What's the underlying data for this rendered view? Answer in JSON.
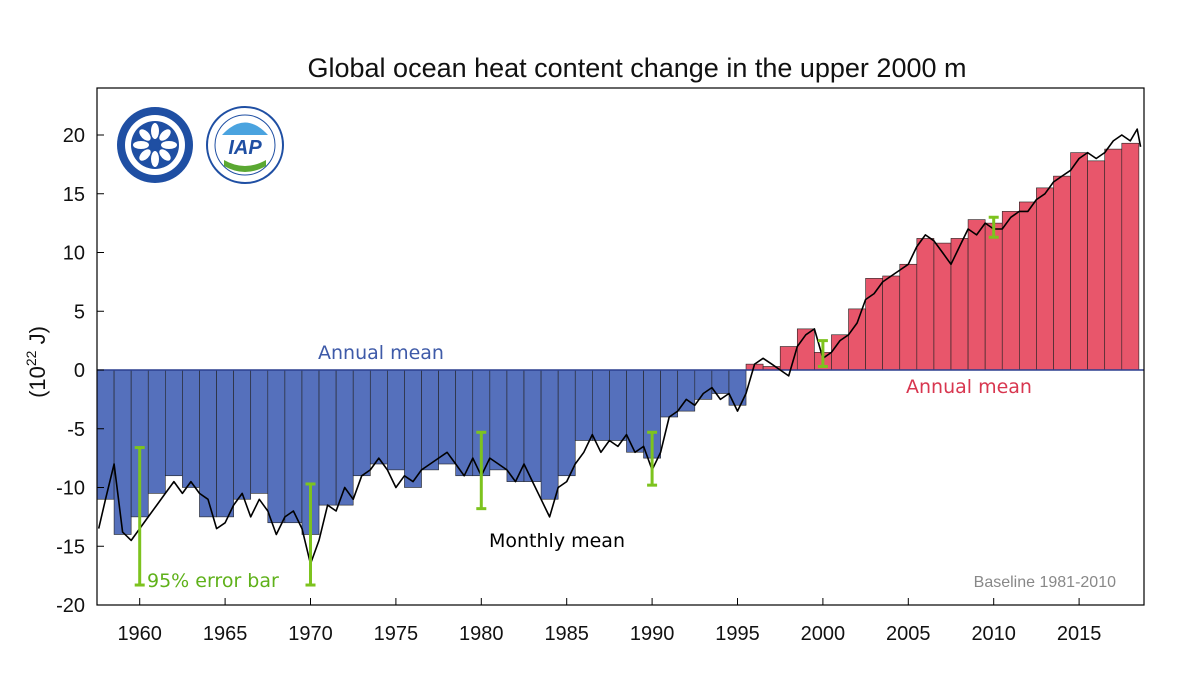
{
  "chart_data": {
    "type": "bar",
    "title": "Global ocean heat content change in the upper 2000 m",
    "ylabel_base": "(10",
    "ylabel_exp": "22",
    "ylabel_unit": " J)",
    "ylim": [
      -20,
      24
    ],
    "xlim": [
      1957.5,
      2018.8
    ],
    "yticks": [
      20,
      15,
      10,
      5,
      0,
      -5,
      -10,
      -15,
      -20
    ],
    "xticks": [
      1960,
      1965,
      1970,
      1975,
      1980,
      1985,
      1990,
      1995,
      2000,
      2005,
      2010,
      2015
    ],
    "annotations": {
      "annual_mean_blue": "Annual mean",
      "annual_mean_red": "Annual mean",
      "monthly_mean": "Monthly mean",
      "error_bar": "95% error bar",
      "baseline": "Baseline 1981-2010"
    },
    "colors": {
      "negative": "#5570BC",
      "positive": "#E8566B",
      "error": "#7DC31E",
      "line": "#000000"
    },
    "series": [
      {
        "name": "Annual mean",
        "x": [
          1958,
          1959,
          1960,
          1961,
          1962,
          1963,
          1964,
          1965,
          1966,
          1967,
          1968,
          1969,
          1970,
          1971,
          1972,
          1973,
          1974,
          1975,
          1976,
          1977,
          1978,
          1979,
          1980,
          1981,
          1982,
          1983,
          1984,
          1985,
          1986,
          1987,
          1988,
          1989,
          1990,
          1991,
          1992,
          1993,
          1994,
          1995,
          1996,
          1997,
          1998,
          1999,
          2000,
          2001,
          2002,
          2003,
          2004,
          2005,
          2006,
          2007,
          2008,
          2009,
          2010,
          2011,
          2012,
          2013,
          2014,
          2015,
          2016,
          2017,
          2018
        ],
        "values": [
          -11,
          -14,
          -12.5,
          -10.5,
          -9,
          -10,
          -12.5,
          -12.5,
          -11,
          -10.5,
          -13,
          -13,
          -14,
          -11.5,
          -11.5,
          -9,
          -8,
          -8.5,
          -10,
          -8.5,
          -8,
          -9,
          -9,
          -8.5,
          -9.5,
          -9.5,
          -11,
          -9,
          -6,
          -6,
          -6,
          -7,
          -7.5,
          -4,
          -3.5,
          -2.5,
          -2,
          -3,
          0.5,
          0.3,
          2,
          3.5,
          1.5,
          3,
          5.2,
          7.8,
          8,
          9,
          11.2,
          10.8,
          11.2,
          12.8,
          12.5,
          13.5,
          14.3,
          15.5,
          16.5,
          18.5,
          17.8,
          18.8,
          19.3
        ]
      },
      {
        "name": "Monthly mean",
        "x": [
          1957.6,
          1958.0,
          1958.5,
          1959.0,
          1959.5,
          1960.0,
          1960.5,
          1961.0,
          1961.5,
          1962.0,
          1962.5,
          1963.0,
          1963.5,
          1964.0,
          1964.5,
          1965.0,
          1965.5,
          1966.0,
          1966.5,
          1967.0,
          1967.5,
          1968.0,
          1968.5,
          1969.0,
          1969.5,
          1970.0,
          1970.5,
          1971.0,
          1971.5,
          1972.0,
          1972.5,
          1973.0,
          1973.5,
          1974.0,
          1974.5,
          1975.0,
          1975.5,
          1976.0,
          1976.5,
          1977.0,
          1977.5,
          1978.0,
          1978.5,
          1979.0,
          1979.5,
          1980.0,
          1980.5,
          1981.0,
          1981.5,
          1982.0,
          1982.5,
          1983.0,
          1983.5,
          1984.0,
          1984.5,
          1985.0,
          1985.5,
          1986.0,
          1986.5,
          1987.0,
          1987.5,
          1988.0,
          1988.5,
          1989.0,
          1989.5,
          1990.0,
          1990.5,
          1991.0,
          1991.5,
          1992.0,
          1992.5,
          1993.0,
          1993.5,
          1994.0,
          1994.5,
          1995.0,
          1995.5,
          1996.0,
          1996.5,
          1997.0,
          1997.5,
          1998.0,
          1998.5,
          1999.0,
          1999.5,
          2000.0,
          2000.5,
          2001.0,
          2001.5,
          2002.0,
          2002.5,
          2003.0,
          2003.5,
          2004.0,
          2004.5,
          2005.0,
          2005.5,
          2006.0,
          2006.5,
          2007.0,
          2007.5,
          2008.0,
          2008.5,
          2009.0,
          2009.5,
          2010.0,
          2010.5,
          2011.0,
          2011.5,
          2012.0,
          2012.5,
          2013.0,
          2013.5,
          2014.0,
          2014.5,
          2015.0,
          2015.5,
          2016.0,
          2016.5,
          2017.0,
          2017.5,
          2018.0,
          2018.4,
          2018.6
        ],
        "values": [
          -13.5,
          -11,
          -8,
          -13.8,
          -14.5,
          -13.5,
          -12.5,
          -11.5,
          -10.5,
          -9.5,
          -10.5,
          -9.5,
          -10.5,
          -11,
          -13.5,
          -13,
          -11.5,
          -10.5,
          -12.5,
          -11,
          -12,
          -14,
          -12.5,
          -12,
          -13.5,
          -16.5,
          -14.5,
          -11.5,
          -12,
          -10,
          -11,
          -9,
          -8.5,
          -7.5,
          -8.5,
          -10,
          -9,
          -9.5,
          -8.5,
          -8,
          -7.5,
          -7,
          -8,
          -9,
          -7.5,
          -9,
          -7.5,
          -8,
          -8.5,
          -9.5,
          -8,
          -9.5,
          -11,
          -12.5,
          -10,
          -9.5,
          -8,
          -7,
          -5.5,
          -7,
          -6,
          -6.5,
          -5.5,
          -7,
          -6.5,
          -8.5,
          -7,
          -4,
          -3.5,
          -2.5,
          -3,
          -2,
          -1.5,
          -2.5,
          -2,
          -3.5,
          -2,
          0.5,
          1,
          0.5,
          0,
          -0.5,
          2,
          3,
          3.5,
          1,
          1.5,
          2.5,
          3,
          4,
          6,
          6.5,
          7.5,
          8,
          8.5,
          9,
          10.5,
          11.5,
          11,
          10,
          9,
          10.5,
          12,
          11.5,
          12.5,
          12,
          12,
          13,
          13.5,
          13.5,
          14.5,
          15,
          16,
          16.5,
          17,
          18,
          18.5,
          18,
          18.5,
          19.5,
          20,
          19.5,
          20.5,
          19
        ]
      }
    ],
    "error_bars": {
      "x": [
        1960,
        1970,
        1980,
        1990,
        2000,
        2010
      ],
      "low": [
        -18.3,
        -18.3,
        -11.8,
        -9.8,
        0.3,
        11.3
      ],
      "high": [
        -6.6,
        -9.7,
        -5.3,
        -5.3,
        2.5,
        13
      ]
    }
  }
}
